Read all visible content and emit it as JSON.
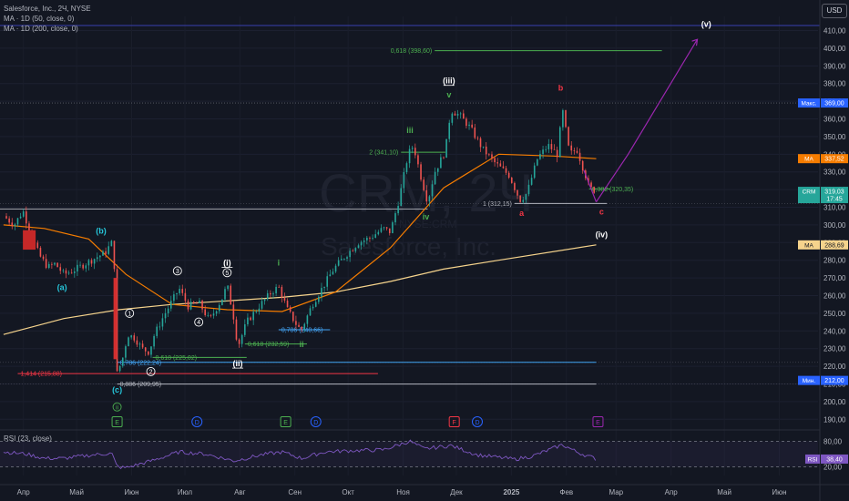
{
  "legend": {
    "title": "Salesforce, Inc., 2Ч, NYSE",
    "ma50": "MA · 1D (50, close, 0)",
    "ma200": "MA · 1D (200, close, 0)",
    "rsi": "RSI (23, close)"
  },
  "currency_button": "USD",
  "watermark": {
    "ticker": "CRM, 2Ч",
    "name": "Salesforce, Inc.",
    "exchange": "NYSE:CRM"
  },
  "colors": {
    "background": "#131722",
    "up": "#26a69a",
    "down": "#ef5350",
    "ma50": "#f57c00",
    "ma200": "#f5d38c",
    "rsi": "#7e57c2",
    "projection": "#9c27b0",
    "fib_green": "#4caf50",
    "fib_blue": "#42a5f5",
    "fib_red": "#f23645"
  },
  "chart_data": {
    "type": "candlestick",
    "x_axis": {
      "labels": [
        "Апр",
        "Май",
        "Июн",
        "Июл",
        "Авг",
        "Сен",
        "Окт",
        "Ноя",
        "Дек",
        "2025",
        "Фев",
        "Мар",
        "Апр",
        "Май",
        "Июн"
      ],
      "start": "2024-04",
      "end": "2025-06"
    },
    "y_axis": {
      "ticks": [
        190,
        200,
        210,
        220,
        230,
        240,
        250,
        260,
        270,
        280,
        290,
        300,
        310,
        320,
        330,
        340,
        350,
        360,
        370,
        380,
        390,
        400,
        410
      ],
      "min": 185,
      "max": 418
    },
    "close_path": [
      [
        "2024-03-28",
        305
      ],
      [
        "2024-04-03",
        300
      ],
      [
        "2024-04-08",
        308
      ],
      [
        "2024-04-12",
        296
      ],
      [
        "2024-04-17",
        283
      ],
      [
        "2024-04-22",
        276
      ],
      [
        "2024-04-26",
        278
      ],
      [
        "2024-05-01",
        272
      ],
      [
        "2024-05-06",
        274
      ],
      [
        "2024-05-13",
        278
      ],
      [
        "2024-05-20",
        282
      ],
      [
        "2024-05-24",
        284
      ],
      [
        "2024-05-28",
        290
      ],
      [
        "2024-05-30",
        271
      ],
      [
        "2024-05-31",
        216
      ],
      [
        "2024-06-03",
        224
      ],
      [
        "2024-06-06",
        238
      ],
      [
        "2024-06-10",
        236
      ],
      [
        "2024-06-14",
        230
      ],
      [
        "2024-06-18",
        228
      ],
      [
        "2024-06-21",
        238
      ],
      [
        "2024-06-26",
        248
      ],
      [
        "2024-07-01",
        257
      ],
      [
        "2024-07-05",
        264
      ],
      [
        "2024-07-10",
        254
      ],
      [
        "2024-07-16",
        256
      ],
      [
        "2024-07-22",
        246
      ],
      [
        "2024-07-29",
        258
      ],
      [
        "2024-08-01",
        266
      ],
      [
        "2024-08-05",
        246
      ],
      [
        "2024-08-07",
        231
      ],
      [
        "2024-08-12",
        245
      ],
      [
        "2024-08-19",
        254
      ],
      [
        "2024-08-26",
        262
      ],
      [
        "2024-08-30",
        265
      ],
      [
        "2024-09-04",
        252
      ],
      [
        "2024-09-10",
        242
      ],
      [
        "2024-09-12",
        241
      ],
      [
        "2024-09-18",
        255
      ],
      [
        "2024-09-24",
        265
      ],
      [
        "2024-09-30",
        275
      ],
      [
        "2024-10-07",
        283
      ],
      [
        "2024-10-14",
        290
      ],
      [
        "2024-10-21",
        293
      ],
      [
        "2024-10-28",
        298
      ],
      [
        "2024-11-01",
        296
      ],
      [
        "2024-11-06",
        315
      ],
      [
        "2024-11-11",
        340
      ],
      [
        "2024-11-14",
        345
      ],
      [
        "2024-11-18",
        328
      ],
      [
        "2024-11-22",
        313
      ],
      [
        "2024-11-26",
        330
      ],
      [
        "2024-12-02",
        342
      ],
      [
        "2024-12-05",
        365
      ],
      [
        "2024-12-10",
        362
      ],
      [
        "2024-12-16",
        355
      ],
      [
        "2024-12-23",
        343
      ],
      [
        "2024-12-30",
        335
      ],
      [
        "2025-01-07",
        328
      ],
      [
        "2025-01-13",
        314
      ],
      [
        "2025-01-17",
        318
      ],
      [
        "2025-01-23",
        338
      ],
      [
        "2025-01-29",
        345
      ],
      [
        "2025-02-03",
        340
      ],
      [
        "2025-02-06",
        365
      ],
      [
        "2025-02-10",
        340
      ],
      [
        "2025-02-14",
        343
      ],
      [
        "2025-02-19",
        328
      ],
      [
        "2025-02-21",
        321
      ],
      [
        "2025-02-25",
        319
      ]
    ],
    "ma50_path": [
      [
        "2024-03-28",
        300
      ],
      [
        "2024-04-20",
        298
      ],
      [
        "2024-05-15",
        292
      ],
      [
        "2024-06-05",
        272
      ],
      [
        "2024-07-01",
        255
      ],
      [
        "2024-08-01",
        252
      ],
      [
        "2024-09-01",
        251
      ],
      [
        "2024-10-01",
        262
      ],
      [
        "2024-11-01",
        287
      ],
      [
        "2024-12-01",
        321
      ],
      [
        "2025-01-01",
        340
      ],
      [
        "2025-02-01",
        339
      ],
      [
        "2025-02-25",
        337.5
      ]
    ],
    "ma200_path": [
      [
        "2024-03-28",
        238
      ],
      [
        "2024-05-01",
        247
      ],
      [
        "2024-06-01",
        252
      ],
      [
        "2024-07-01",
        255
      ],
      [
        "2024-08-01",
        257
      ],
      [
        "2024-09-01",
        259
      ],
      [
        "2024-10-01",
        262
      ],
      [
        "2024-11-01",
        268
      ],
      [
        "2024-12-01",
        275
      ],
      [
        "2025-01-01",
        280
      ],
      [
        "2025-02-25",
        288.7
      ]
    ],
    "projection_path": [
      [
        "2025-02-25",
        313
      ],
      [
        "2025-03-15",
        340
      ],
      [
        "2025-04-23",
        405
      ]
    ],
    "price_labels": [
      {
        "text": "Макс.",
        "value": "369,00",
        "y": 369,
        "color": "#2962ff"
      },
      {
        "text": "MA",
        "value": "337,52",
        "y": 337.5,
        "color": "#f57c00"
      },
      {
        "text": "CRM",
        "value": "319,03",
        "sub": "17:45",
        "y": 319,
        "color": "#26a69a"
      },
      {
        "text": "MA",
        "value": "288,69",
        "y": 288.7,
        "color": "#f5d38c"
      },
      {
        "text": "Мин.",
        "value": "212,00",
        "y": 212,
        "color": "#2962ff"
      }
    ],
    "fib_levels": [
      {
        "label": "0,618 (398,60)",
        "y": 398.6,
        "x1": "2024-11-26",
        "x2": "2025-04-03",
        "color": "#4caf50"
      },
      {
        "label": "2 (341,10)",
        "y": 341.1,
        "x1": "2024-11-07",
        "x2": "2024-12-02",
        "color": "#4caf50"
      },
      {
        "label": "0,382 (320,35)",
        "y": 320.35,
        "x1": "2025-02-21",
        "x2": "2025-03-05",
        "color": "#4caf50"
      },
      {
        "label": "1 (312,15)",
        "y": 312.15,
        "x1": "2025-01-10",
        "x2": "2025-03-03",
        "color": "#b2b5be"
      },
      {
        "label": "0,786 (240,66)",
        "y": 240.66,
        "x1": "2024-08-30",
        "x2": "2024-09-28",
        "color": "#42a5f5"
      },
      {
        "label": "0,618 (232,59)",
        "y": 232.59,
        "x1": "2024-08-11",
        "x2": "2024-09-15",
        "color": "#4caf50"
      },
      {
        "label": "0,618 (225,02)",
        "y": 225.02,
        "x1": "2024-06-20",
        "x2": "2024-08-12",
        "color": "#4caf50"
      },
      {
        "label": "0,786 (222,24)",
        "y": 222.24,
        "x1": "2024-05-31",
        "x2": "2025-02-25",
        "color": "#42a5f5"
      },
      {
        "label": "1,414 (215,88)",
        "y": 215.88,
        "x1": "2024-04-05",
        "x2": "2024-10-25",
        "color": "#f23645"
      },
      {
        "label": "0,886 (209,95)",
        "y": 209.95,
        "x1": "2024-05-31",
        "x2": "2025-02-25",
        "color": "#b2b5be"
      }
    ],
    "wave_labels": [
      {
        "text": "(v)",
        "x": "2025-04-28",
        "y": 412,
        "color": "#ffffff",
        "style": "plain"
      },
      {
        "text": "(iii)",
        "x": "2024-12-04",
        "y": 380,
        "color": "#ffffff",
        "style": "underline"
      },
      {
        "text": "v",
        "x": "2024-12-04",
        "y": 372,
        "color": "#4caf50",
        "style": "plain"
      },
      {
        "text": "b",
        "x": "2025-02-05",
        "y": 376,
        "color": "#f23645",
        "style": "plain"
      },
      {
        "text": "iii",
        "x": "2024-11-12",
        "y": 352,
        "color": "#4caf50",
        "style": "plain"
      },
      {
        "text": "iv",
        "x": "2024-11-21",
        "y": 303,
        "color": "#4caf50",
        "style": "plain"
      },
      {
        "text": "a",
        "x": "2025-01-14",
        "y": 305,
        "color": "#f23645",
        "style": "plain"
      },
      {
        "text": "c",
        "x": "2025-02-28",
        "y": 306,
        "color": "#f23645",
        "style": "plain"
      },
      {
        "text": "(iv)",
        "x": "2025-02-28",
        "y": 293,
        "color": "#ffffff",
        "style": "plain"
      },
      {
        "text": "(b)",
        "x": "2024-05-22",
        "y": 295,
        "color": "#26c6da",
        "style": "plain"
      },
      {
        "text": "(a)",
        "x": "2024-04-30",
        "y": 263,
        "color": "#26c6da",
        "style": "plain"
      },
      {
        "text": "i",
        "x": "2024-08-30",
        "y": 277,
        "color": "#4caf50",
        "style": "plain"
      },
      {
        "text": "(i)",
        "x": "2024-08-01",
        "y": 277,
        "color": "#ffffff",
        "style": "underline"
      },
      {
        "text": "ii",
        "x": "2024-09-12",
        "y": 231,
        "color": "#4caf50",
        "style": "plain"
      },
      {
        "text": "(ii)",
        "x": "2024-08-07",
        "y": 220,
        "color": "#ffffff",
        "style": "underline"
      },
      {
        "text": "(c)",
        "x": "2024-05-31",
        "y": 205,
        "color": "#26c6da",
        "style": "plain"
      }
    ],
    "circled_labels": [
      {
        "text": "1",
        "x": "2024-06-07",
        "y": 250,
        "color": "#ffffff"
      },
      {
        "text": "2",
        "x": "2024-06-19",
        "y": 217,
        "color": "#ffffff"
      },
      {
        "text": "3",
        "x": "2024-07-04",
        "y": 274,
        "color": "#ffffff"
      },
      {
        "text": "4",
        "x": "2024-07-16",
        "y": 245,
        "color": "#ffffff"
      },
      {
        "text": "5",
        "x": "2024-08-01",
        "y": 273,
        "color": "#ffffff"
      },
      {
        "text": "ii",
        "x": "2024-05-31",
        "y": 197,
        "color": "#4caf50"
      }
    ],
    "event_markers": [
      {
        "text": "E",
        "x": "2024-05-31",
        "color": "#4caf50"
      },
      {
        "text": "D",
        "x": "2024-07-15",
        "color": "#2962ff"
      },
      {
        "text": "E",
        "x": "2024-09-03",
        "color": "#4caf50"
      },
      {
        "text": "D",
        "x": "2024-09-20",
        "color": "#2962ff"
      },
      {
        "text": "F",
        "x": "2024-12-07",
        "color": "#f23645"
      },
      {
        "text": "D",
        "x": "2024-12-20",
        "color": "#2962ff"
      },
      {
        "text": "E",
        "x": "2025-02-26",
        "color": "#9c27b0"
      }
    ],
    "rsi": {
      "ticks": [
        80,
        20
      ],
      "min": 0,
      "max": 100,
      "value_label": {
        "text": "RSI",
        "value": "38,40"
      },
      "path": [
        [
          "2024-03-28",
          55
        ],
        [
          "2024-04-10",
          50
        ],
        [
          "2024-04-20",
          40
        ],
        [
          "2024-05-01",
          40
        ],
        [
          "2024-05-15",
          47
        ],
        [
          "2024-05-28",
          52
        ],
        [
          "2024-05-31",
          20
        ],
        [
          "2024-06-05",
          18
        ],
        [
          "2024-06-20",
          35
        ],
        [
          "2024-07-05",
          55
        ],
        [
          "2024-07-20",
          50
        ],
        [
          "2024-08-05",
          34
        ],
        [
          "2024-08-20",
          48
        ],
        [
          "2024-09-01",
          55
        ],
        [
          "2024-09-12",
          40
        ],
        [
          "2024-09-25",
          55
        ],
        [
          "2024-10-10",
          58
        ],
        [
          "2024-10-28",
          60
        ],
        [
          "2024-11-12",
          80
        ],
        [
          "2024-11-20",
          62
        ],
        [
          "2024-12-05",
          70
        ],
        [
          "2024-12-20",
          48
        ],
        [
          "2025-01-10",
          38
        ],
        [
          "2025-01-20",
          45
        ],
        [
          "2025-02-06",
          72
        ],
        [
          "2025-02-14",
          55
        ],
        [
          "2025-02-25",
          38.4
        ]
      ]
    }
  }
}
